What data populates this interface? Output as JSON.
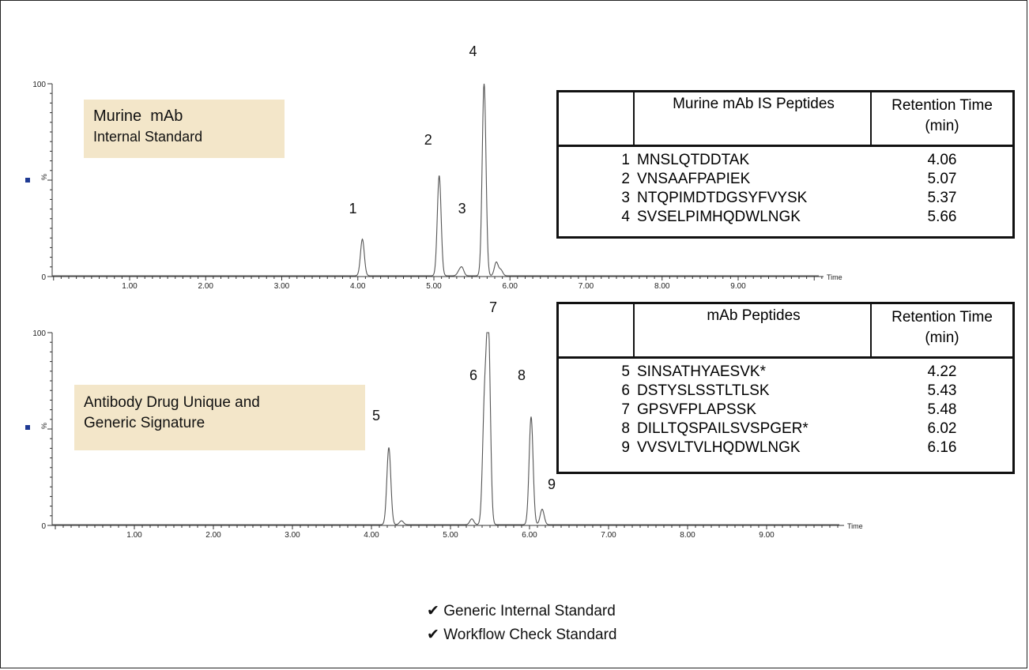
{
  "chart_data": [
    {
      "type": "line",
      "xlabel": "Time",
      "ylabel": "%",
      "y_ticks": [
        "0",
        "100"
      ],
      "x_ticks": [
        "1.00",
        "2.00",
        "3.00",
        "4.00",
        "5.00",
        "6.00",
        "7.00",
        "8.00",
        "9.00"
      ],
      "xlim": [
        0,
        10
      ],
      "ylim": [
        0,
        100
      ],
      "label_box": {
        "line1": "Murine  mAb",
        "line2": "Internal Standard"
      },
      "peaks": [
        {
          "label": "1",
          "x": 4.06,
          "y": 19
        },
        {
          "label": "2",
          "x": 5.07,
          "y": 52
        },
        {
          "label": "3",
          "x": 5.37,
          "y": 4
        },
        {
          "label": "4",
          "x": 5.66,
          "y": 100
        }
      ],
      "minor_peaks": [
        {
          "x": 5.33,
          "y": 2
        },
        {
          "x": 5.82,
          "y": 7
        },
        {
          "x": 5.88,
          "y": 3
        }
      ],
      "table": {
        "col_peptide": "Murine mAb IS Peptides",
        "col_rt_line1": "Retention Time",
        "col_rt_line2": "(min)",
        "rows": [
          {
            "num": "1",
            "peptide": "MNSLQTDDTAK",
            "rt": "4.06"
          },
          {
            "num": "2",
            "peptide": "VNSAAFPAPIEK",
            "rt": "5.07"
          },
          {
            "num": "3",
            "peptide": "NTQPIMDTDGSYFVYSK",
            "rt": "5.37"
          },
          {
            "num": "4",
            "peptide": "SVSELPIMHQDWLNGK",
            "rt": "5.66"
          }
        ]
      }
    },
    {
      "type": "line",
      "xlabel": "Time",
      "ylabel": "%",
      "y_ticks": [
        "0",
        "100"
      ],
      "x_ticks": [
        "1.00",
        "2.00",
        "3.00",
        "4.00",
        "5.00",
        "6.00",
        "7.00",
        "8.00",
        "9.00"
      ],
      "xlim": [
        0,
        10
      ],
      "ylim": [
        0,
        100
      ],
      "label_box": {
        "line1": "Antibody Drug Unique and",
        "line2": "Generic Signature"
      },
      "peaks": [
        {
          "label": "5",
          "x": 4.22,
          "y": 40
        },
        {
          "label": "6",
          "x": 5.43,
          "y": 59
        },
        {
          "label": "7",
          "x": 5.48,
          "y": 100
        },
        {
          "label": "8",
          "x": 6.02,
          "y": 56
        },
        {
          "label": "9",
          "x": 6.16,
          "y": 8
        }
      ],
      "minor_peaks": [
        {
          "x": 4.38,
          "y": 2
        },
        {
          "x": 5.27,
          "y": 3
        }
      ],
      "table": {
        "col_peptide": "mAb Peptides",
        "col_rt_line1": "Retention Time",
        "col_rt_line2": "(min)",
        "rows": [
          {
            "num": "5",
            "peptide": "SINSATHYAESVK*",
            "rt": "4.22"
          },
          {
            "num": "6",
            "peptide": "DSTYSLSSTLTLSK",
            "rt": "5.43"
          },
          {
            "num": "7",
            "peptide": "GPSVFPLAPSSK",
            "rt": "5.48"
          },
          {
            "num": "8",
            "peptide": "DILLTQSPAILSVSPGER*",
            "rt": "6.02"
          },
          {
            "num": "9",
            "peptide": "VVSVLTVLHQDWLNGK",
            "rt": "6.16"
          }
        ]
      }
    }
  ],
  "legend": {
    "check_icon": "check-icon",
    "items": [
      "Generic Internal Standard",
      "Workflow Check Standard"
    ]
  },
  "colors": {
    "trace": "#555555",
    "label_box": "#f3e6c9",
    "marker": "#1f3a93"
  }
}
